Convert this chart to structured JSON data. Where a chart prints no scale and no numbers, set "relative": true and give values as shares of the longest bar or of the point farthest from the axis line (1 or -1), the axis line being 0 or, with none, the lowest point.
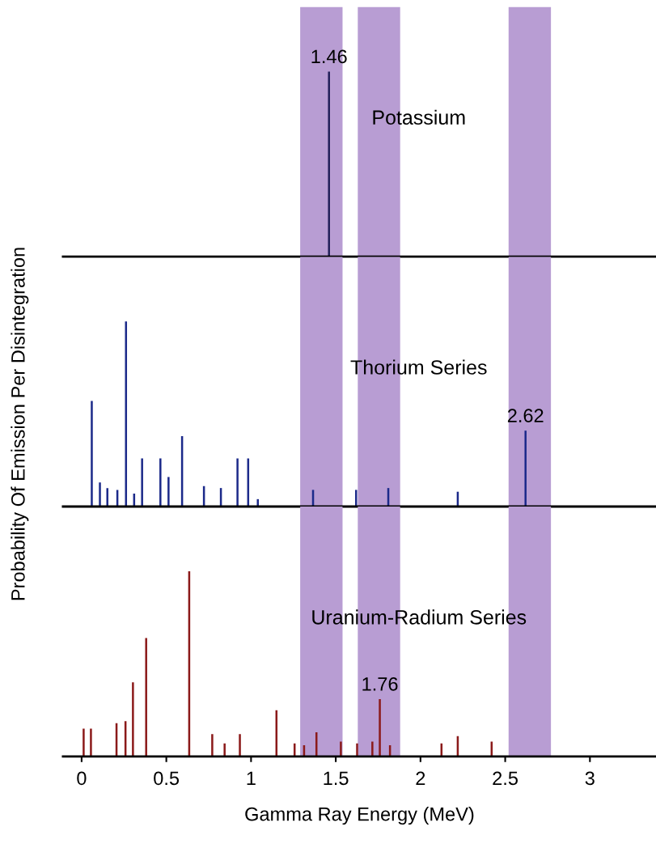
{
  "chart_data": [
    {
      "type": "bar",
      "title": "Potassium",
      "relative": true,
      "xlim": [
        -0.11,
        3.39
      ],
      "tick_labels": false,
      "x": [
        1.46
      ],
      "series": [
        {
          "color": "#22205a",
          "values": [
            1
          ]
        }
      ],
      "annotations": [
        {
          "text": "1.46",
          "x": 1.46,
          "y": 1
        }
      ],
      "bands": [
        {
          "axis": "x",
          "from": 1.29,
          "to": 1.54,
          "color": "#b89dd3"
        },
        {
          "axis": "x",
          "from": 1.63,
          "to": 1.88,
          "color": "#b89dd3"
        },
        {
          "axis": "x",
          "from": 2.52,
          "to": 2.77,
          "color": "#b89dd3"
        }
      ]
    },
    {
      "type": "bar",
      "title": "Thorium Series",
      "ylabel": "Probability Of Emission Per Disintegration",
      "relative": true,
      "xlim": [
        -0.11,
        3.39
      ],
      "tick_labels": false,
      "x": [
        0.06,
        0.108,
        0.152,
        0.211,
        0.262,
        0.31,
        0.357,
        0.465,
        0.513,
        0.593,
        0.722,
        0.822,
        0.92,
        0.983,
        1.04,
        1.366,
        1.62,
        1.81,
        2.22,
        2.62
      ],
      "series": [
        {
          "color": "#1c2a8a",
          "values": [
            0.57,
            0.13,
            0.1,
            0.09,
            1,
            0.07,
            0.26,
            0.26,
            0.16,
            0.38,
            0.11,
            0.1,
            0.26,
            0.26,
            0.04,
            0.09,
            0.09,
            0.1,
            0.08,
            0.41
          ]
        }
      ],
      "annotations": [
        {
          "text": "2.62",
          "x": 2.62,
          "y": 0.41
        }
      ],
      "bands": [
        {
          "axis": "x",
          "from": 1.29,
          "to": 1.54,
          "color": "#b89dd3"
        },
        {
          "axis": "x",
          "from": 1.63,
          "to": 1.88,
          "color": "#b89dd3"
        },
        {
          "axis": "x",
          "from": 2.52,
          "to": 2.77,
          "color": "#b89dd3"
        }
      ]
    },
    {
      "type": "bar",
      "title": "Uranium-Radium Series",
      "xlabel": "Gamma Ray Energy (MeV)",
      "relative": true,
      "xlim": [
        -0.11,
        3.39
      ],
      "xticks": [
        0,
        0.5,
        1,
        1.5,
        2,
        2.5,
        3
      ],
      "tick_labels": "x",
      "x": [
        0.012,
        0.055,
        0.206,
        0.259,
        0.303,
        0.381,
        0.635,
        0.771,
        0.844,
        0.934,
        1.15,
        1.257,
        1.313,
        1.386,
        1.53,
        1.626,
        1.716,
        1.76,
        1.82,
        2.124,
        2.22,
        2.42
      ],
      "series": [
        {
          "color": "#8b1a1a",
          "values": [
            0.15,
            0.15,
            0.18,
            0.19,
            0.4,
            0.64,
            1,
            0.12,
            0.07,
            0.12,
            0.25,
            0.07,
            0.06,
            0.13,
            0.08,
            0.07,
            0.08,
            0.31,
            0.06,
            0.07,
            0.11,
            0.08
          ]
        }
      ],
      "annotations": [
        {
          "text": "1.76",
          "x": 1.76,
          "y": 0.31
        }
      ],
      "bands": [
        {
          "axis": "x",
          "from": 1.29,
          "to": 1.54,
          "color": "#b89dd3"
        },
        {
          "axis": "x",
          "from": 1.63,
          "to": 1.88,
          "color": "#b89dd3"
        },
        {
          "axis": "x",
          "from": 2.52,
          "to": 2.77,
          "color": "#b89dd3"
        }
      ]
    }
  ]
}
